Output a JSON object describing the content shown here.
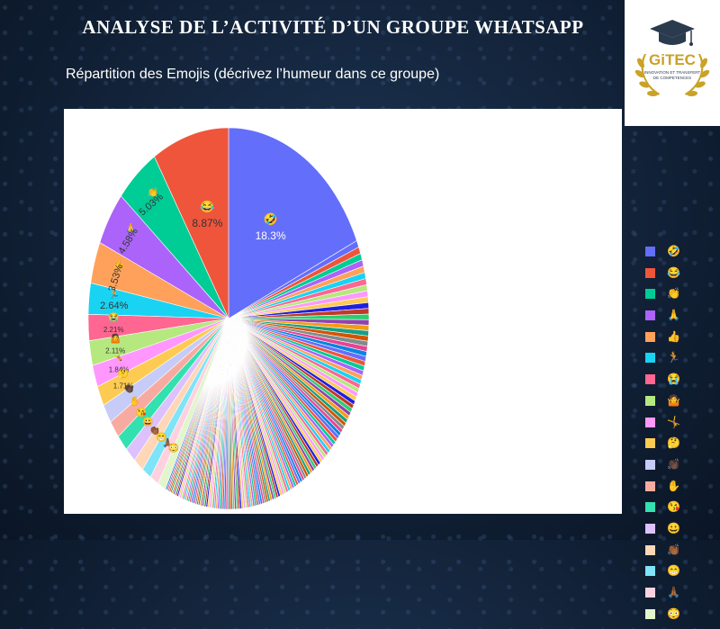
{
  "slide": {
    "title": "Analyse de l’activité d’un groupe WhatsApp",
    "subtitle": "Répartition des Emojis (décrivez l’humeur dans ce groupe)"
  },
  "logo": {
    "text": "GiTEC",
    "tagline_1": "INNOVATION ET TRANSFERT",
    "tagline_2": "DE COMPETENCES",
    "icon": "graduation-cap-laurel-icon"
  },
  "chart_data": {
    "type": "pie",
    "title": "",
    "start_angle_deg": 0,
    "direction": "clockwise",
    "slices": [
      {
        "label": "🤣",
        "value": 18.3,
        "text": "18.3%",
        "color": "#636efa"
      },
      {
        "label": "😂",
        "value": 8.87,
        "text": "8.87%",
        "color": "#ef553b"
      },
      {
        "label": "👏",
        "value": 5.03,
        "text": "5.03%",
        "color": "#00cc96"
      },
      {
        "label": "🙏",
        "value": 4.58,
        "text": "4.58%",
        "color": "#ab63fa"
      },
      {
        "label": "👍",
        "value": 3.53,
        "text": "3.53%",
        "color": "#ffa15a"
      },
      {
        "label": "🏃",
        "value": 2.64,
        "text": "2.64%",
        "color": "#19d3f3"
      },
      {
        "label": "😭",
        "value": 2.21,
        "text": "2.21%",
        "color": "#ff6692"
      },
      {
        "label": "🤷",
        "value": 2.11,
        "text": "2.11%",
        "color": "#b6e880"
      },
      {
        "label": "🤸",
        "value": 1.84,
        "text": "1.84%",
        "color": "#ff97ff"
      },
      {
        "label": "🤔",
        "value": 1.71,
        "text": "1.71%",
        "color": "#fecb52"
      },
      {
        "label": "👏🏿",
        "value": 1.6,
        "text": "",
        "color": "#c6cbf8"
      },
      {
        "label": "✋",
        "value": 1.5,
        "text": "",
        "color": "#f7aba0"
      },
      {
        "label": "😘",
        "value": 1.4,
        "text": "",
        "color": "#33e0b0"
      },
      {
        "label": "😀",
        "value": 1.3,
        "text": "",
        "color": "#dcc1fd"
      },
      {
        "label": "👏🏾",
        "value": 1.2,
        "text": "",
        "color": "#ffd7b7"
      },
      {
        "label": "😁",
        "value": 1.1,
        "text": "",
        "color": "#7fe4f8"
      },
      {
        "label": "🙏🏾",
        "value": 1.0,
        "text": "",
        "color": "#ffd1df"
      },
      {
        "label": "😳",
        "value": 0.95,
        "text": "",
        "color": "#e3f5cc"
      }
    ],
    "tail": {
      "count": 140,
      "remainder_value": 36.13,
      "palette": [
        "#636efa",
        "#ef553b",
        "#00cc96",
        "#ab63fa",
        "#ffa15a",
        "#19d3f3",
        "#ff6692",
        "#b6e880",
        "#ff97ff",
        "#fecb52",
        "#1f1fe0",
        "#c0392b",
        "#2ecc71",
        "#8e44ad",
        "#f39c12",
        "#16a085",
        "#d35400",
        "#7f8c8d",
        "#e84393",
        "#0984e3"
      ]
    },
    "legend": {
      "placement": "right"
    }
  }
}
